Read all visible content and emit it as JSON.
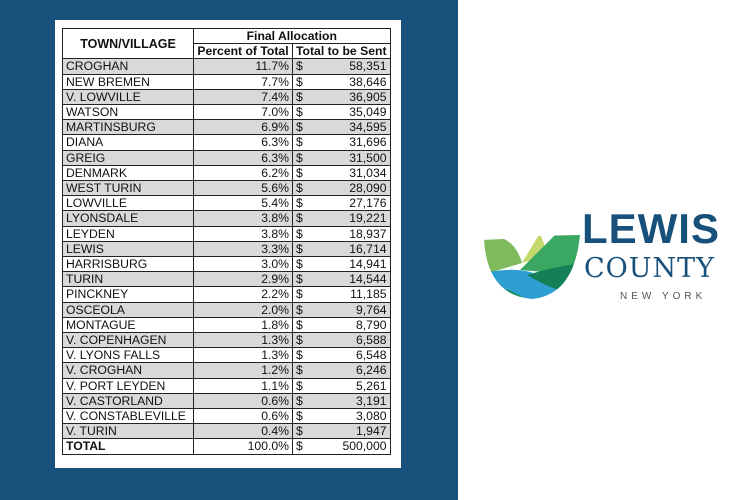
{
  "table": {
    "header_town": "TOWN/VILLAGE",
    "header_group": "Final Allocation",
    "header_percent": "Percent of Total",
    "header_total": "Total to be Sent",
    "rows": [
      {
        "name": "CROGHAN",
        "pct": "11.7%",
        "cur": "$",
        "amt": "58,351"
      },
      {
        "name": "NEW BREMEN",
        "pct": "7.7%",
        "cur": "$",
        "amt": "38,646"
      },
      {
        "name": "V. LOWVILLE",
        "pct": "7.4%",
        "cur": "$",
        "amt": "36,905"
      },
      {
        "name": "WATSON",
        "pct": "7.0%",
        "cur": "$",
        "amt": "35,049"
      },
      {
        "name": "MARTINSBURG",
        "pct": "6.9%",
        "cur": "$",
        "amt": "34,595"
      },
      {
        "name": "DIANA",
        "pct": "6.3%",
        "cur": "$",
        "amt": "31,696"
      },
      {
        "name": "GREIG",
        "pct": "6.3%",
        "cur": "$",
        "amt": "31,500"
      },
      {
        "name": "DENMARK",
        "pct": "6.2%",
        "cur": "$",
        "amt": "31,034"
      },
      {
        "name": "WEST TURIN",
        "pct": "5.6%",
        "cur": "$",
        "amt": "28,090"
      },
      {
        "name": "LOWVILLE",
        "pct": "5.4%",
        "cur": "$",
        "amt": "27,176"
      },
      {
        "name": "LYONSDALE",
        "pct": "3.8%",
        "cur": "$",
        "amt": "19,221"
      },
      {
        "name": "LEYDEN",
        "pct": "3.8%",
        "cur": "$",
        "amt": "18,937"
      },
      {
        "name": "LEWIS",
        "pct": "3.3%",
        "cur": "$",
        "amt": "16,714"
      },
      {
        "name": "HARRISBURG",
        "pct": "3.0%",
        "cur": "$",
        "amt": "14,941"
      },
      {
        "name": "TURIN",
        "pct": "2.9%",
        "cur": "$",
        "amt": "14,544"
      },
      {
        "name": "PINCKNEY",
        "pct": "2.2%",
        "cur": "$",
        "amt": "11,185"
      },
      {
        "name": "OSCEOLA",
        "pct": "2.0%",
        "cur": "$",
        "amt": "9,764"
      },
      {
        "name": "MONTAGUE",
        "pct": "1.8%",
        "cur": "$",
        "amt": "8,790"
      },
      {
        "name": "V. COPENHAGEN",
        "pct": "1.3%",
        "cur": "$",
        "amt": "6,588"
      },
      {
        "name": "V. LYONS FALLS",
        "pct": "1.3%",
        "cur": "$",
        "amt": "6,548"
      },
      {
        "name": "V. CROGHAN",
        "pct": "1.2%",
        "cur": "$",
        "amt": "6,246"
      },
      {
        "name": "V. PORT LEYDEN",
        "pct": "1.1%",
        "cur": "$",
        "amt": "5,261"
      },
      {
        "name": "V. CASTORLAND",
        "pct": "0.6%",
        "cur": "$",
        "amt": "3,191"
      },
      {
        "name": "V. CONSTABLEVILLE",
        "pct": "0.6%",
        "cur": "$",
        "amt": "3,080"
      },
      {
        "name": "V. TURIN",
        "pct": "0.4%",
        "cur": "$",
        "amt": "1,947"
      }
    ],
    "total": {
      "name": "TOTAL",
      "pct": "100.0%",
      "cur": "$",
      "amt": "500,000"
    }
  },
  "logo": {
    "line1": "LEWIS",
    "line2": "COUNTY",
    "line3": "NEW YORK"
  },
  "colors": {
    "panel": "#17507a",
    "row_shade": "#d9d9d9"
  }
}
